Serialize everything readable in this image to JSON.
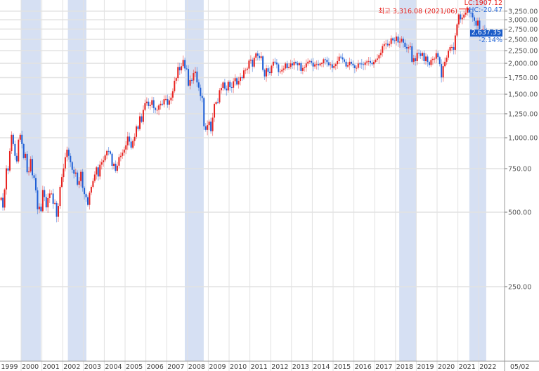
{
  "chart_data": {
    "type": "candlestick",
    "scale": "log",
    "interval": "monthly",
    "start": "1999-01",
    "colors": {
      "up": "#e8221f",
      "down": "#1f5fd6",
      "shade": "#d6e0f3",
      "grid": "#e2e2e2"
    },
    "first_open": 560,
    "close": [
      572,
      522,
      618,
      752,
      737,
      883,
      1028,
      944,
      845,
      802,
      982,
      1028,
      943,
      828,
      861,
      725,
      731,
      821,
      705,
      688,
      613,
      514,
      526,
      505,
      615,
      576,
      523,
      570,
      595,
      595,
      541,
      545,
      479,
      530,
      633,
      693,
      752,
      834,
      895,
      845,
      796,
      742,
      716,
      723,
      646,
      668,
      728,
      627,
      592,
      575,
      535,
      600,
      633,
      669,
      710,
      759,
      697,
      778,
      796,
      810,
      848,
      884,
      881,
      862,
      770,
      785,
      735,
      771,
      835,
      845,
      870,
      896,
      932,
      1011,
      965,
      911,
      970,
      1008,
      1112,
      1084,
      1221,
      1159,
      1297,
      1379,
      1399,
      1344,
      1359,
      1419,
      1318,
      1295,
      1297,
      1352,
      1371,
      1364,
      1432,
      1434,
      1361,
      1417,
      1453,
      1542,
      1700,
      1743,
      1933,
      1873,
      1946,
      2064,
      1906,
      1897,
      1624,
      1711,
      1704,
      1825,
      1852,
      1674,
      1594,
      1474,
      1448,
      1113,
      1076,
      1124,
      1162,
      1063,
      1206,
      1369,
      1395,
      1390,
      1557,
      1591,
      1673,
      1580,
      1555,
      1682,
      1602,
      1594,
      1692,
      1741,
      1641,
      1698,
      1759,
      1742,
      1872,
      1882,
      1904,
      2051,
      2069,
      1939,
      2106,
      2192,
      2142,
      2100,
      2133,
      1880,
      1769,
      1909,
      1847,
      1825,
      1955,
      2030,
      2014,
      1981,
      1843,
      1854,
      1881,
      1905,
      1996,
      1912,
      1932,
      1997,
      1961,
      2026,
      2004,
      1963,
      2001,
      1863,
      1914,
      1926,
      1996,
      2030,
      2044,
      2011,
      1941,
      1980,
      1985,
      1961,
      1995,
      2002,
      2076,
      2068,
      2020,
      1964,
      1981,
      1916,
      1949,
      1985,
      2041,
      2127,
      2114,
      2074,
      2030,
      1941,
      1963,
      2029,
      1991,
      1961,
      1912,
      1917,
      1996,
      1994,
      1983,
      1970,
      2016,
      2034,
      2043,
      2008,
      1983,
      2026,
      2067,
      2091,
      2160,
      2205,
      2347,
      2392,
      2402,
      2363,
      2394,
      2523,
      2476,
      2467,
      2566,
      2427,
      2445,
      2515,
      2423,
      2326,
      2295,
      2323,
      2343,
      2029,
      2097,
      2041,
      2204,
      2195,
      2140,
      2204,
      2041,
      2130,
      2024,
      1967,
      2063,
      2083,
      2087,
      2197,
      2119,
      1987,
      1754,
      1947,
      2029,
      2108,
      2249,
      2326,
      2327,
      2267,
      2591,
      2873,
      3152,
      3013,
      3061,
      3147,
      3204,
      3296,
      3202,
      3199,
      3068,
      2970,
      2839,
      2977,
      2663,
      2699,
      2757,
      2695,
      2637.35
    ],
    "y_ticks": [
      250,
      500,
      750,
      1000,
      1250,
      1500,
      1750,
      2000,
      2250,
      2500,
      2750,
      3000,
      3250
    ],
    "y_tick_labels": [
      "250.00",
      "500.00",
      "750.00",
      "1,000.00",
      "1,250.00",
      "1,500.00",
      "1,750.00",
      "2,000.00",
      "2,250.00",
      "2,500.00",
      "2,750.00",
      "3,000.00",
      "3,250.00"
    ],
    "x_tick_labels": [
      "1999",
      "2000",
      "2001",
      "2002",
      "2003",
      "2004",
      "2005",
      "2006",
      "2007",
      "2008",
      "2009",
      "2010",
      "2011",
      "2012",
      "2013",
      "2014",
      "2015",
      "2016",
      "2017",
      "2018",
      "2019",
      "2020",
      "2021",
      "2022"
    ],
    "x_date_label": "05/02",
    "shaded_periods": [
      [
        2000.0,
        2000.95
      ],
      [
        2002.25,
        2003.14
      ],
      [
        2007.87,
        2008.78
      ],
      [
        2018.18,
        2018.99
      ],
      [
        2021.55,
        2022.36
      ]
    ],
    "grid": true
  },
  "annotations": {
    "lc": "LC:1907.12",
    "hc": "HC:-20.47",
    "last_value": "2,637.35",
    "change": "-2.14%",
    "peak_label": "최고 3,316.08 (2021/06)",
    "peak_value": 3316.08
  }
}
